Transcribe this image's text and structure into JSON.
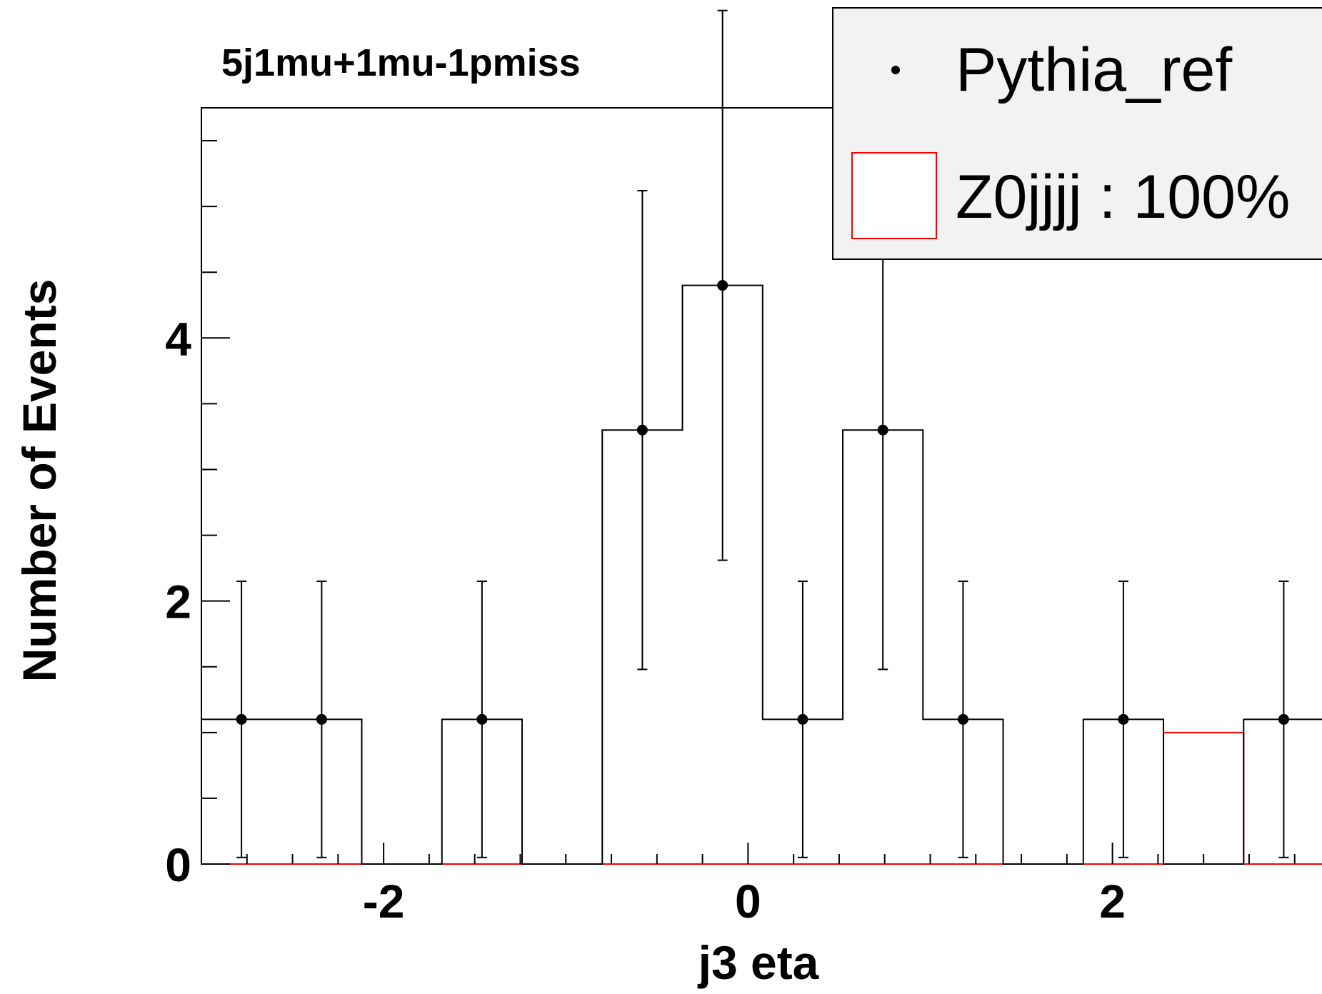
{
  "chart_data": {
    "type": "bar",
    "title": "5j1mu+1mu-1pmiss",
    "xlabel": "j3 eta",
    "ylabel": "Number of Events",
    "xlim": [
      -3.0,
      3.15
    ],
    "ylim": [
      0,
      5.75
    ],
    "x_ticks": [
      "-2",
      "0",
      "2"
    ],
    "y_ticks": [
      "0",
      "2",
      "4"
    ],
    "grid": false,
    "legend_placement": "top-right",
    "legend": [
      {
        "label": "Pythia_ref",
        "marker": "point"
      },
      {
        "label": "Z0jjjj : 100%",
        "marker": "box"
      }
    ],
    "bin_edges": [
      -3.0,
      -2.56,
      -2.12,
      -1.68,
      -1.24,
      -0.8,
      -0.36,
      0.08,
      0.52,
      0.96,
      1.4,
      1.84,
      2.28,
      2.72,
      3.16
    ],
    "series": [
      {
        "name": "Pythia_ref",
        "kind": "points-with-errors",
        "x": [
          -2.78,
          -2.34,
          -1.46,
          -0.58,
          -0.14,
          0.3,
          0.74,
          1.18,
          2.06,
          2.94
        ],
        "y": [
          1.1,
          1.1,
          1.1,
          3.3,
          4.4,
          1.1,
          3.3,
          1.1,
          1.1,
          1.1
        ],
        "err_low": [
          1.05,
          1.05,
          1.05,
          1.82,
          2.09,
          1.05,
          1.82,
          1.05,
          1.05,
          1.05
        ],
        "err_high": [
          1.05,
          1.05,
          1.05,
          1.82,
          2.09,
          1.05,
          1.82,
          1.05,
          1.05,
          1.05
        ],
        "step_values": [
          1.1,
          1.1,
          0,
          1.1,
          0,
          3.3,
          4.4,
          1.1,
          3.3,
          1.1,
          0,
          1.1,
          0,
          1.1
        ],
        "color": "#000000"
      },
      {
        "name": "Z0jjjj : 100%",
        "kind": "step",
        "values": [
          0,
          0,
          0,
          0,
          0,
          0,
          0,
          0,
          0,
          0,
          0,
          0,
          1.0,
          0
        ],
        "color": "#ff0000"
      }
    ]
  }
}
